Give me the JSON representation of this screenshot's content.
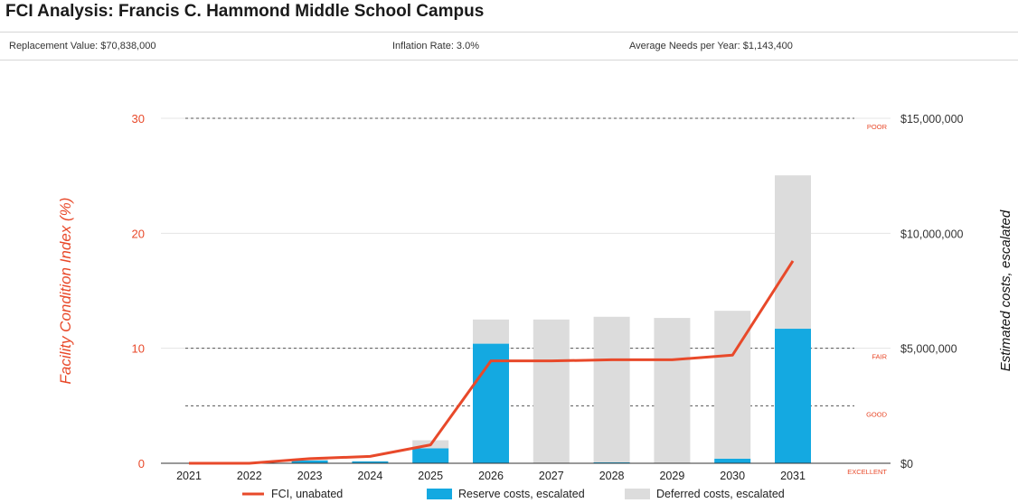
{
  "title": "FCI Analysis: Francis C. Hammond Middle School Campus",
  "info": {
    "replacement_value": "Replacement Value: $70,838,000",
    "inflation_rate": "Inflation Rate: 3.0%",
    "average_needs": "Average Needs per Year: $1,143,400"
  },
  "colors": {
    "fci_line": "#e8492a",
    "reserve_bar": "#14a9e1",
    "deferred_bar": "#dcdcdc",
    "left_axis_text": "#e8492a"
  },
  "chart_data": {
    "type": "bar",
    "categories": [
      "2021",
      "2022",
      "2023",
      "2024",
      "2025",
      "2026",
      "2027",
      "2028",
      "2029",
      "2030",
      "2031"
    ],
    "series": [
      {
        "name": "Reserve costs, escalated",
        "axis": "right",
        "stack": "costs",
        "values": [
          0,
          0,
          120000,
          80000,
          650000,
          5200000,
          0,
          40000,
          0,
          200000,
          5850000
        ]
      },
      {
        "name": "Deferred costs, escalated",
        "axis": "right",
        "stack": "costs",
        "values": [
          0,
          0,
          80000,
          20000,
          350000,
          1050000,
          6250000,
          6330000,
          6320000,
          6430000,
          6670000
        ]
      },
      {
        "name": "FCI, unabated",
        "type": "line",
        "axis": "left",
        "values": [
          0,
          0,
          0.4,
          0.6,
          1.6,
          8.9,
          8.9,
          9.0,
          9.0,
          9.4,
          17.6
        ]
      }
    ],
    "left_axis": {
      "label": "Facility Condition Index (%)",
      "ylim": [
        0,
        30
      ],
      "ticks": [
        "0",
        "10",
        "20",
        "30"
      ]
    },
    "right_axis": {
      "label": "Estimated costs, escalated",
      "ylim": [
        0,
        15000000
      ],
      "ticks": [
        "$0",
        "$5,000,000",
        "$10,000,000",
        "$15,000,000"
      ]
    },
    "thresholds": [
      {
        "label": "POOR",
        "value": 30
      },
      {
        "label": "FAIR",
        "value": 10
      },
      {
        "label": "GOOD",
        "value": 5
      },
      {
        "label": "EXCELLENT",
        "value": 0
      }
    ],
    "legend": [
      "FCI, unabated",
      "Reserve costs, escalated",
      "Deferred costs, escalated"
    ],
    "legend_position": "bottom"
  }
}
